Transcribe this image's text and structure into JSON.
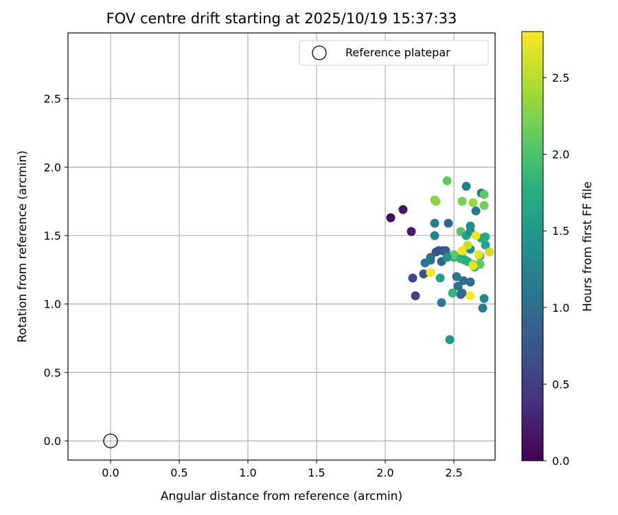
{
  "chart_data": {
    "type": "scatter",
    "title": "FOV centre drift starting at 2025/10/19 15:37:33",
    "xlabel": "Angular distance from reference (arcmin)",
    "ylabel": "Rotation from reference (arcmin)",
    "xlim": [
      -0.31,
      2.8
    ],
    "ylim": [
      -0.14,
      2.98
    ],
    "xticks": [
      0.0,
      0.5,
      1.0,
      1.5,
      2.0,
      2.5
    ],
    "yticks": [
      0.0,
      0.5,
      1.0,
      1.5,
      2.0,
      2.5
    ],
    "xtick_labels": [
      "0.0",
      "0.5",
      "1.0",
      "1.5",
      "2.0",
      "2.5"
    ],
    "ytick_labels": [
      "0.0",
      "0.5",
      "1.0",
      "1.5",
      "2.0",
      "2.5"
    ],
    "grid": true,
    "legend": {
      "position": "top-right",
      "label": "Reference platepar"
    },
    "reference_point": {
      "x": 0.0,
      "y": 0.0,
      "marker": "open-circle",
      "color": "#000000"
    },
    "colorbar": {
      "label": "Hours from first FF file",
      "range": [
        0.0,
        2.8
      ],
      "ticks": [
        0.0,
        0.5,
        1.0,
        1.5,
        2.0,
        2.5
      ],
      "tick_labels": [
        "0.0",
        "0.5",
        "1.0",
        "1.5",
        "2.0",
        "2.5"
      ],
      "colormap": "viridis"
    },
    "series": [
      {
        "name": "FOV centre drift",
        "x": [
          2.04,
          2.13,
          2.19,
          2.36,
          2.45,
          2.37,
          2.39,
          2.46,
          2.56,
          2.59,
          2.7,
          2.72,
          2.64,
          2.66,
          2.36,
          2.36,
          2.44,
          2.55,
          2.59,
          2.62,
          2.62,
          2.7,
          2.73,
          2.37,
          2.42,
          2.44,
          2.46,
          2.5,
          2.56,
          2.58,
          2.62,
          2.66,
          2.72,
          2.33,
          2.33,
          2.29,
          2.41,
          2.5,
          2.55,
          2.6,
          2.64,
          2.69,
          2.73,
          2.76,
          2.28,
          2.33,
          2.4,
          2.52,
          2.57,
          2.62,
          2.65,
          2.69,
          2.53,
          2.56,
          2.41,
          2.55,
          2.72,
          2.2,
          2.22,
          2.53,
          2.62,
          2.49,
          2.71,
          2.47,
          2.6,
          2.56,
          2.64,
          2.68,
          2.33,
          2.45
        ],
        "y": [
          1.63,
          1.69,
          1.53,
          1.76,
          1.9,
          1.75,
          1.39,
          1.59,
          1.75,
          1.86,
          1.81,
          1.8,
          1.74,
          1.68,
          1.59,
          1.5,
          1.39,
          1.53,
          1.5,
          1.53,
          1.57,
          1.48,
          1.49,
          1.38,
          1.39,
          1.38,
          1.35,
          1.34,
          1.37,
          1.32,
          1.4,
          1.5,
          1.72,
          1.34,
          1.32,
          1.3,
          1.31,
          1.36,
          1.33,
          1.31,
          1.29,
          1.35,
          1.43,
          1.38,
          1.22,
          1.23,
          1.19,
          1.2,
          1.17,
          1.16,
          1.27,
          1.29,
          1.13,
          1.08,
          1.01,
          1.07,
          1.04,
          1.19,
          1.06,
          1.13,
          1.06,
          1.08,
          0.97,
          0.74,
          1.43,
          1.39,
          1.28,
          1.36,
          1.23,
          1.34
        ],
        "hours": [
          0.05,
          0.12,
          0.18,
          2.25,
          2.1,
          2.3,
          0.7,
          0.9,
          2.2,
          1.2,
          1.2,
          2.1,
          2.35,
          1.1,
          1.2,
          1.3,
          0.7,
          2.05,
          1.6,
          1.4,
          1.35,
          1.65,
          1.7,
          0.7,
          0.75,
          0.8,
          0.95,
          1.9,
          2.4,
          1.6,
          1.35,
          2.75,
          2.2,
          1.0,
          1.05,
          1.1,
          0.9,
          2.1,
          1.8,
          1.75,
          2.25,
          1.9,
          1.6,
          2.6,
          0.7,
          2.78,
          1.6,
          1.1,
          1.0,
          1.0,
          1.7,
          2.1,
          0.85,
          1.0,
          1.2,
          0.9,
          1.3,
          0.6,
          0.55,
          1.05,
          2.8,
          1.85,
          1.2,
          1.5,
          2.55,
          2.75,
          2.7,
          2.7,
          2.78,
          1.45
        ]
      }
    ]
  }
}
